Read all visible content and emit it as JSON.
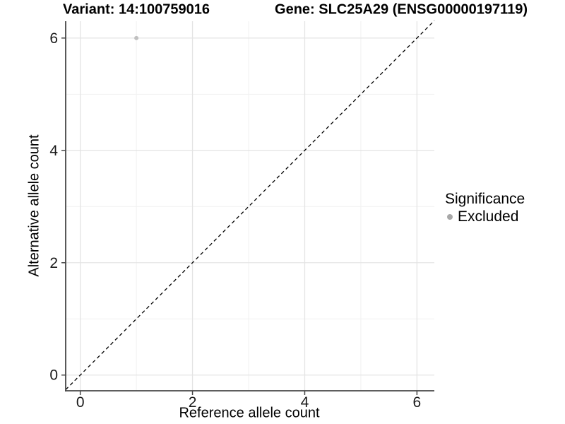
{
  "titles": {
    "variant": "Variant: 14:100759016",
    "gene": "Gene: SLC25A29 (ENSG00000197119)"
  },
  "axes": {
    "x_label": "Reference allele count",
    "y_label": "Alternative allele count"
  },
  "legend": {
    "title": "Significance",
    "items": [
      {
        "label": "Excluded",
        "color": "#a8a8a8"
      }
    ]
  },
  "chart_data": {
    "type": "scatter",
    "title_left": "Variant: 14:100759016",
    "title_right": "Gene: SLC25A29 (ENSG00000197119)",
    "xlabel": "Reference allele count",
    "ylabel": "Alternative allele count",
    "points": [
      {
        "x": 1,
        "y": 6,
        "series": "Excluded",
        "color": "#c0c0c0"
      }
    ],
    "series": [
      {
        "name": "Excluded",
        "color": "#c0c0c0"
      }
    ],
    "reference_line": {
      "type": "identity",
      "style": "dashed",
      "color": "#000000"
    },
    "xlim": [
      -0.26,
      6.31
    ],
    "ylim": [
      -0.28,
      6.3
    ],
    "x_ticks": [
      0,
      2,
      4,
      6
    ],
    "y_ticks": [
      0,
      2,
      4,
      6
    ],
    "minor_ticks": [
      1,
      3,
      5
    ],
    "grid": true,
    "legend_position": "right",
    "legend_title": "Significance",
    "colors": {
      "grid_major": "#e4e4e4",
      "grid_minor": "#f1f1f1",
      "axis_line": "#474747",
      "tick_text": "#1a1a1a",
      "background": "#ffffff"
    }
  }
}
